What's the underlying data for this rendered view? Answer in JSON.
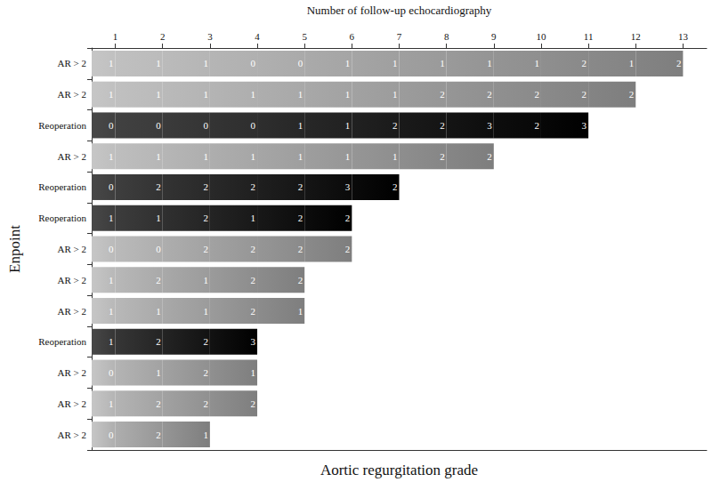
{
  "chart_data": {
    "type": "bar",
    "orientation": "horizontal",
    "stacked": true,
    "data_labels": true,
    "grid": false,
    "xlabel": "Number of follow-up echocardiography",
    "ylabel": "Enpoint",
    "annotation": "Aortic regurgitation grade",
    "xlim": [
      0.5,
      13.5
    ],
    "xticks": [
      1,
      2,
      3,
      4,
      5,
      6,
      7,
      8,
      9,
      10,
      11,
      12,
      13
    ],
    "categories": [
      "AR > 2",
      "AR > 2",
      "Reoperation",
      "AR > 2",
      "Reoperation",
      "Reoperation",
      "AR > 2",
      "AR > 2",
      "AR > 2",
      "Reoperation",
      "AR > 2",
      "AR > 2",
      "AR > 2"
    ],
    "bars": [
      {
        "values": [
          1,
          1,
          1,
          0,
          0,
          1,
          1,
          1,
          1,
          1,
          2,
          1,
          2
        ],
        "color": "#c6c6c6"
      },
      {
        "values": [
          1,
          1,
          1,
          1,
          1,
          1,
          1,
          2,
          2,
          2,
          2,
          2
        ],
        "color": "#c6c6c6"
      },
      {
        "values": [
          0,
          0,
          0,
          0,
          1,
          1,
          2,
          2,
          3,
          2,
          3
        ],
        "color": "#484848"
      },
      {
        "values": [
          1,
          1,
          1,
          1,
          1,
          1,
          1,
          2,
          2
        ],
        "color": "#c6c6c6"
      },
      {
        "values": [
          0,
          2,
          2,
          2,
          2,
          3,
          2
        ],
        "color": "#484848"
      },
      {
        "values": [
          1,
          1,
          2,
          1,
          2,
          2
        ],
        "color": "#484848"
      },
      {
        "values": [
          0,
          0,
          2,
          2,
          2,
          2
        ],
        "color": "#c6c6c6"
      },
      {
        "values": [
          1,
          2,
          1,
          2,
          2
        ],
        "color": "#c6c6c6"
      },
      {
        "values": [
          1,
          1,
          1,
          2,
          1
        ],
        "color": "#c6c6c6"
      },
      {
        "values": [
          1,
          2,
          2,
          3
        ],
        "color": "#484848"
      },
      {
        "values": [
          0,
          1,
          2,
          1
        ],
        "color": "#c6c6c6"
      },
      {
        "values": [
          1,
          2,
          2,
          2
        ],
        "color": "#c6c6c6"
      },
      {
        "values": [
          0,
          2,
          1
        ],
        "color": "#c6c6c6"
      }
    ]
  }
}
